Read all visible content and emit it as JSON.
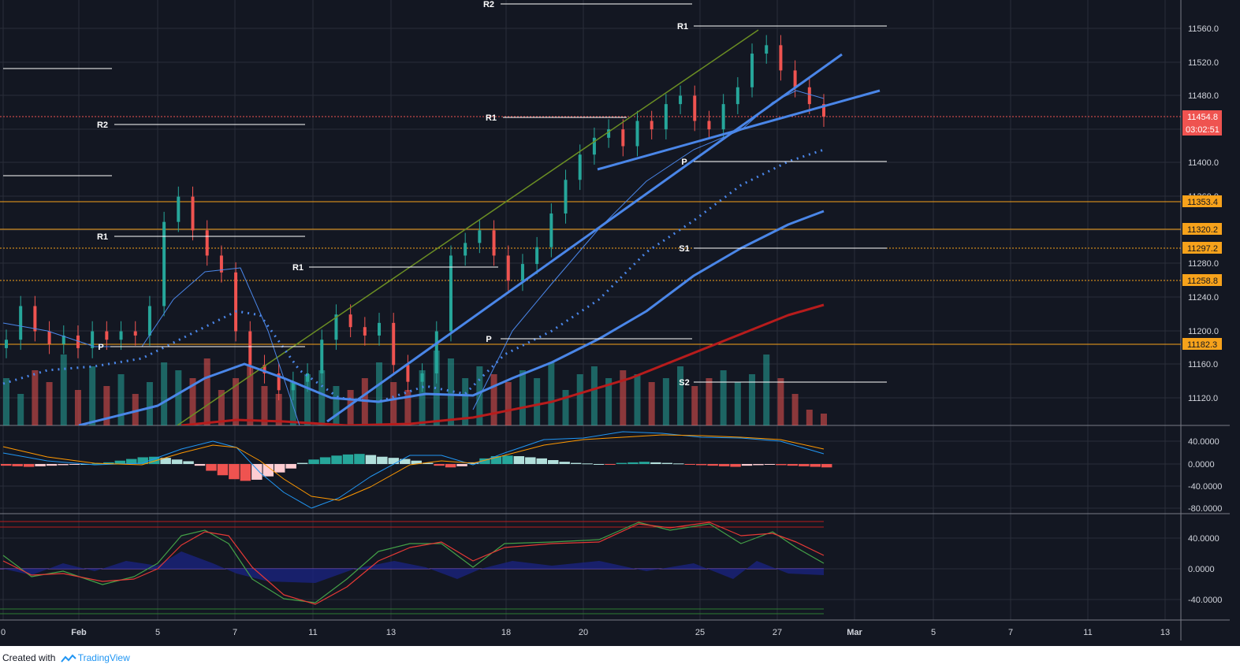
{
  "footer": {
    "created_with": "Created with",
    "brand": "TradingView"
  },
  "colors": {
    "bg": "#131722",
    "grid": "#2a2e39",
    "up": "#26a69a",
    "down": "#ef5350",
    "ma_blue": "#4a86e8",
    "ma_red": "#b71c1c",
    "trend_green": "#6b8e23",
    "pivot_line": "#ffffff",
    "hline_orange": "#f7a21b"
  },
  "chart_data": [
    {
      "type": "candlestick",
      "title": "",
      "x_axis": {
        "ticks": [
          "0",
          "Feb",
          "5",
          "7",
          "11",
          "13",
          "18",
          "20",
          "25",
          "27",
          "Mar",
          "5",
          "7",
          "11",
          "13"
        ]
      },
      "y_axis": {
        "ticks": [
          "11560.0",
          "11520.0",
          "11480.0",
          "11440.0",
          "11400.0",
          "11360.0",
          "11320.0",
          "11280.0",
          "11240.0",
          "11200.0",
          "11160.0",
          "11120.0"
        ],
        "ylim": [
          11100,
          11570
        ]
      },
      "last_price": "11454.8",
      "countdown": "03:02:51",
      "price_tags": [
        "11353.4",
        "11320.2",
        "11297.2",
        "11258.8",
        "11182.3"
      ],
      "pivot_labels": [
        "R2",
        "R1",
        "R2",
        "R1",
        "R1",
        "P",
        "R1",
        "P",
        "S1",
        "S2",
        "P",
        "R1"
      ],
      "approx_close_series": [
        11190,
        11230,
        11200,
        11185,
        11195,
        11180,
        11200,
        11190,
        11200,
        11195,
        11230,
        11330,
        11360,
        11320,
        11290,
        11270,
        11200,
        11160,
        11150,
        11130,
        11140,
        11150,
        11190,
        11220,
        11205,
        11195,
        11210,
        11160,
        11140,
        11150,
        11200,
        11290,
        11305,
        11320,
        11290,
        11260,
        11280,
        11300,
        11340,
        11380,
        11410,
        11430,
        11440,
        11420,
        11450,
        11440,
        11470,
        11480,
        11450,
        11440,
        11470,
        11490,
        11530,
        11540,
        11510,
        11490,
        11470,
        11455
      ]
    },
    {
      "type": "line",
      "title": "",
      "y_axis": {
        "ticks": [
          "40.0000",
          "0.0000",
          "-40.0000",
          "-80.0000"
        ],
        "ylim": [
          -85,
          55
        ]
      },
      "series": []
    },
    {
      "type": "line",
      "title": "",
      "y_axis": {
        "ticks": [
          "40.0000",
          "0.0000",
          "-40.0000"
        ],
        "ylim": [
          -60,
          70
        ]
      },
      "series": []
    }
  ]
}
